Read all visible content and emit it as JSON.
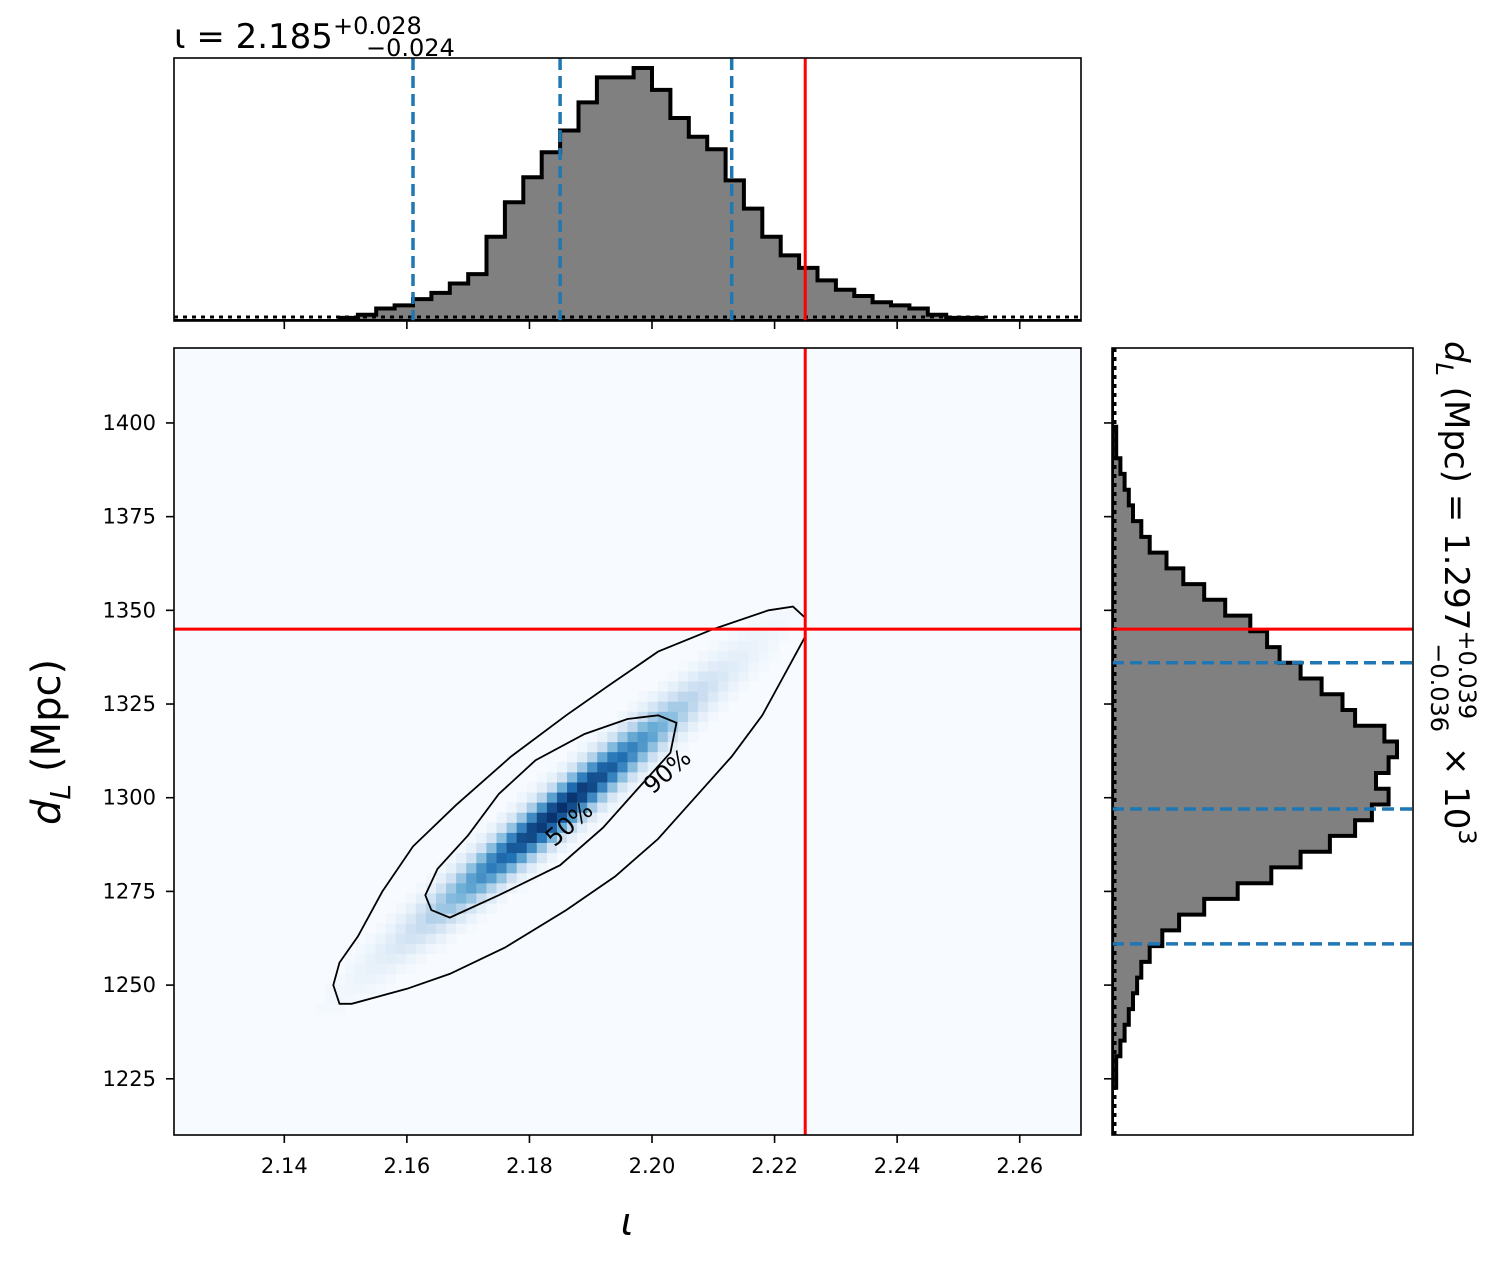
{
  "chart_data": {
    "type": "corner",
    "panels": {
      "top_marginal": {
        "type": "histogram",
        "title_prefix": "ι = 2.185",
        "title_sup": "+0.028",
        "title_sub": "−0.024",
        "xlim": [
          2.122,
          2.27
        ],
        "bins_start": 2.122,
        "bin_width": 0.003,
        "counts": [
          0,
          0,
          0,
          0,
          0,
          0,
          0,
          0,
          0,
          1,
          2,
          4,
          5,
          7,
          9,
          12,
          15,
          27,
          38,
          46,
          54,
          61,
          70,
          78,
          78,
          81,
          74,
          65,
          59,
          55,
          45,
          36,
          27,
          21,
          17,
          13,
          10,
          8,
          6,
          5,
          4,
          2,
          1,
          1,
          0,
          0,
          0,
          0,
          0,
          0
        ],
        "dashed_quantiles": [
          2.161,
          2.185,
          2.213
        ],
        "truth": 2.225,
        "colors": {
          "fill": "#808080",
          "edge": "#000000",
          "quantile": "#1f77b4",
          "truth": "#ff0000"
        }
      },
      "joint": {
        "type": "heatmap",
        "xlabel": "ι",
        "ylabel": "d",
        "ylabel_sub": "L",
        "ylabel_unit": "(Mpc)",
        "xlim": [
          2.122,
          2.27
        ],
        "ylim": [
          1210,
          1420
        ],
        "x_ticks": [
          "2.14",
          "2.16",
          "2.18",
          "2.20",
          "2.22",
          "2.24",
          "2.26"
        ],
        "x_tick_values": [
          2.14,
          2.16,
          2.18,
          2.2,
          2.22,
          2.24,
          2.26
        ],
        "y_ticks": [
          "1225",
          "1250",
          "1275",
          "1300",
          "1325",
          "1350",
          "1375",
          "1400"
        ],
        "y_tick_values": [
          1225,
          1250,
          1275,
          1300,
          1325,
          1350,
          1375,
          1400
        ],
        "density_peak": {
          "x": 2.185,
          "y": 1297
        },
        "correlation": 0.97,
        "sigma": {
          "x": 0.013,
          "y": 18
        },
        "contours": [
          {
            "label": "50%",
            "points": [
              [
                2.164,
                1270
              ],
              [
                2.167,
                1268
              ],
              [
                2.175,
                1274
              ],
              [
                2.185,
                1282
              ],
              [
                2.192,
                1292
              ],
              [
                2.198,
                1303
              ],
              [
                2.203,
                1312
              ],
              [
                2.204,
                1320
              ],
              [
                2.201,
                1322
              ],
              [
                2.196,
                1321
              ],
              [
                2.189,
                1317
              ],
              [
                2.181,
                1310
              ],
              [
                2.175,
                1301
              ],
              [
                2.17,
                1290
              ],
              [
                2.165,
                1281
              ],
              [
                2.163,
                1274
              ]
            ]
          },
          {
            "label": "90%",
            "points": [
              [
                2.149,
                1245
              ],
              [
                2.151,
                1245
              ],
              [
                2.16,
                1249
              ],
              [
                2.167,
                1253
              ],
              [
                2.176,
                1260
              ],
              [
                2.186,
                1270
              ],
              [
                2.194,
                1279
              ],
              [
                2.201,
                1289
              ],
              [
                2.207,
                1300
              ],
              [
                2.213,
                1311
              ],
              [
                2.218,
                1322
              ],
              [
                2.223,
                1337
              ],
              [
                2.225,
                1343
              ],
              [
                2.225,
                1348
              ],
              [
                2.223,
                1351
              ],
              [
                2.219,
                1350
              ],
              [
                2.21,
                1345
              ],
              [
                2.201,
                1339
              ],
              [
                2.193,
                1330
              ],
              [
                2.186,
                1322
              ],
              [
                2.177,
                1311
              ],
              [
                2.168,
                1298
              ],
              [
                2.161,
                1287
              ],
              [
                2.156,
                1275
              ],
              [
                2.152,
                1263
              ],
              [
                2.149,
                1256
              ],
              [
                2.148,
                1250
              ]
            ]
          }
        ],
        "contour_labels": [
          {
            "text": "50%",
            "x": 2.1865,
            "y": 1293,
            "angle": -41
          },
          {
            "text": "90%",
            "x": 2.2025,
            "y": 1307,
            "angle": -41
          }
        ],
        "truth": {
          "x": 2.225,
          "y": 1345
        },
        "colors": {
          "cmap_low": "#f7fbff",
          "cmap_high": "#08306b",
          "contour": "#000000",
          "truth": "#ff0000"
        }
      },
      "right_marginal": {
        "type": "histogram",
        "orientation": "horizontal",
        "label_prefix": "d",
        "label_sub": "L",
        "label_mid": " (Mpc) = 1.297",
        "label_sup": "+0.039",
        "label_sub2": "−0.036",
        "label_suffix": " × 10",
        "label_exp": "3",
        "ylim": [
          1210,
          1420
        ],
        "bins_start": 1210,
        "bin_width": 4.2,
        "counts": [
          0,
          0,
          0,
          1,
          1,
          2,
          3,
          4,
          5,
          6,
          7,
          9,
          12,
          16,
          22,
          30,
          38,
          45,
          52,
          58,
          62,
          66,
          63,
          66,
          68,
          65,
          58,
          55,
          50,
          45,
          40,
          37,
          33,
          27,
          22,
          17,
          13,
          9,
          7,
          5,
          4,
          3,
          2,
          1,
          1,
          0,
          0,
          0,
          0,
          0
        ],
        "dashed_quantiles": [
          1261,
          1297,
          1336
        ],
        "truth": 1345,
        "colors": {
          "fill": "#808080",
          "edge": "#000000",
          "quantile": "#1f77b4",
          "truth": "#ff0000"
        }
      }
    }
  }
}
